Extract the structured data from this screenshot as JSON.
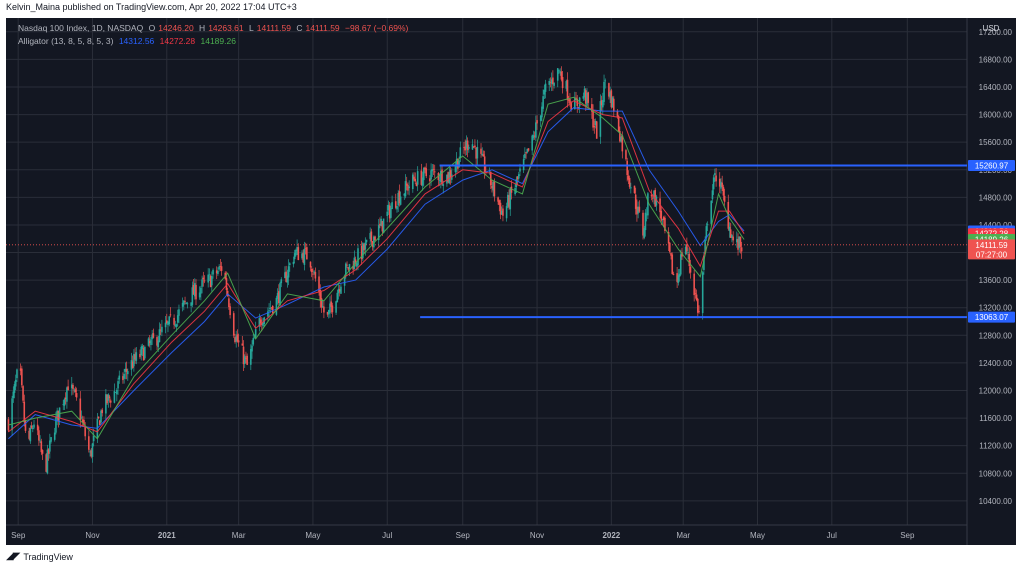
{
  "header": {
    "publisher": "Kelvin_Maina published on TradingView.com, Apr 20, 2022 17:04 UTC+3"
  },
  "legend": {
    "symbol": "Nasdaq 100 Index, 1D, NASDAQ",
    "ohlc": [
      {
        "k": "O",
        "v": "14246.20"
      },
      {
        "k": "H",
        "v": "14263.61"
      },
      {
        "k": "L",
        "v": "14111.59"
      },
      {
        "k": "C",
        "v": "14111.59"
      }
    ],
    "change": "−98.67 (−0.69%)",
    "indicator": "Alligator (13, 8, 5, 8, 5, 3)",
    "jaw": "14312.56",
    "teeth": "14272.28",
    "lips": "14189.26"
  },
  "footer": {
    "brand": "TradingView"
  },
  "colors": {
    "background": "#131722",
    "grid": "#2a2e39",
    "up": "#26a69a",
    "down": "#ef5350",
    "jaw": "#2962ff",
    "teeth": "#f23645",
    "lips": "#4caf50",
    "level": "#2962ff"
  },
  "chart_data": {
    "type": "candlestick",
    "currency": "USD",
    "y_ticks": [
      10400,
      10800,
      11200,
      11600,
      12000,
      12400,
      12800,
      13200,
      13600,
      14000,
      14400,
      14800,
      15200,
      15600,
      16000,
      16400,
      16800,
      17200
    ],
    "y_tick_labels": [
      "10400.00",
      "10800.00",
      "11200.00",
      "11600.00",
      "12000.00",
      "12400.00",
      "12800.00",
      "13200.00",
      "13600.00",
      "14000.00",
      "14400.00",
      "14800.00",
      "15200.00",
      "15600.00",
      "16000.00",
      "16400.00",
      "16800.00",
      "17200.00"
    ],
    "ylim": [
      10050,
      17400
    ],
    "x_ticks": [
      {
        "label": "Sep",
        "date": "2020-09-01",
        "bold": false
      },
      {
        "label": "Nov",
        "date": "2020-11-01",
        "bold": false
      },
      {
        "label": "2021",
        "date": "2021-01-01",
        "bold": true
      },
      {
        "label": "Mar",
        "date": "2021-03-01",
        "bold": false
      },
      {
        "label": "May",
        "date": "2021-05-01",
        "bold": false
      },
      {
        "label": "Jul",
        "date": "2021-07-01",
        "bold": false
      },
      {
        "label": "Sep",
        "date": "2021-09-01",
        "bold": false
      },
      {
        "label": "Nov",
        "date": "2021-11-01",
        "bold": false
      },
      {
        "label": "2022",
        "date": "2022-01-01",
        "bold": true
      },
      {
        "label": "Mar",
        "date": "2022-03-01",
        "bold": false
      },
      {
        "label": "May",
        "date": "2022-05-01",
        "bold": false
      },
      {
        "label": "Jul",
        "date": "2022-07-01",
        "bold": false
      },
      {
        "label": "Sep",
        "date": "2022-09-01",
        "bold": false
      }
    ],
    "xlim": [
      "2020-08-22",
      "2022-10-20"
    ],
    "close_path": [
      [
        "2020-08-24",
        11550
      ],
      [
        "2020-09-02",
        12380
      ],
      [
        "2020-09-08",
        11150
      ],
      [
        "2020-09-14",
        11550
      ],
      [
        "2020-09-23",
        10850
      ],
      [
        "2020-10-01",
        11500
      ],
      [
        "2020-10-12",
        12100
      ],
      [
        "2020-10-20",
        11800
      ],
      [
        "2020-10-30",
        11050
      ],
      [
        "2020-11-09",
        11750
      ],
      [
        "2020-11-20",
        12000
      ],
      [
        "2020-12-01",
        12350
      ],
      [
        "2020-12-15",
        12600
      ],
      [
        "2020-12-31",
        12900
      ],
      [
        "2021-01-08",
        13050
      ],
      [
        "2021-01-22",
        13400
      ],
      [
        "2021-02-05",
        13600
      ],
      [
        "2021-02-16",
        13800
      ],
      [
        "2021-02-26",
        12800
      ],
      [
        "2021-03-08",
        12350
      ],
      [
        "2021-03-19",
        13050
      ],
      [
        "2021-04-01",
        13300
      ],
      [
        "2021-04-16",
        14000
      ],
      [
        "2021-04-28",
        13950
      ],
      [
        "2021-05-12",
        13000
      ],
      [
        "2021-05-26",
        13700
      ],
      [
        "2021-06-10",
        14000
      ],
      [
        "2021-06-25",
        14350
      ],
      [
        "2021-07-09",
        14800
      ],
      [
        "2021-07-23",
        15050
      ],
      [
        "2021-08-06",
        15150
      ],
      [
        "2021-08-20",
        15100
      ],
      [
        "2021-09-07",
        15650
      ],
      [
        "2021-09-20",
        15200
      ],
      [
        "2021-10-04",
        14550
      ],
      [
        "2021-10-15",
        15000
      ],
      [
        "2021-10-28",
        15600
      ],
      [
        "2021-11-08",
        16350
      ],
      [
        "2021-11-19",
        16650
      ],
      [
        "2021-12-01",
        16100
      ],
      [
        "2021-12-10",
        16300
      ],
      [
        "2021-12-20",
        15750
      ],
      [
        "2021-12-27",
        16500
      ],
      [
        "2022-01-05",
        16000
      ],
      [
        "2022-01-14",
        15200
      ],
      [
        "2022-01-27",
        14300
      ],
      [
        "2022-02-02",
        14950
      ],
      [
        "2022-02-10",
        14600
      ],
      [
        "2022-02-23",
        13500
      ],
      [
        "2022-03-02",
        14200
      ],
      [
        "2022-03-14",
        13100
      ],
      [
        "2022-03-22",
        14700
      ],
      [
        "2022-03-29",
        15200
      ],
      [
        "2022-04-05",
        14600
      ],
      [
        "2022-04-12",
        14100
      ],
      [
        "2022-04-20",
        14111.59
      ]
    ],
    "alligator": {
      "jaw": [
        [
          "2020-08-24",
          11300
        ],
        [
          "2020-09-15",
          11650
        ],
        [
          "2020-10-15",
          11500
        ],
        [
          "2020-11-05",
          11450
        ],
        [
          "2020-12-05",
          12000
        ],
        [
          "2021-01-05",
          12550
        ],
        [
          "2021-02-01",
          13000
        ],
        [
          "2021-02-20",
          13400
        ],
        [
          "2021-03-15",
          13050
        ],
        [
          "2021-04-10",
          13250
        ],
        [
          "2021-05-10",
          13500
        ],
        [
          "2021-06-05",
          13600
        ],
        [
          "2021-07-01",
          14050
        ],
        [
          "2021-08-01",
          14700
        ],
        [
          "2021-09-01",
          15050
        ],
        [
          "2021-09-25",
          15200
        ],
        [
          "2021-10-20",
          15000
        ],
        [
          "2021-11-10",
          15750
        ],
        [
          "2021-12-01",
          16100
        ],
        [
          "2021-12-25",
          16050
        ],
        [
          "2022-01-10",
          16050
        ],
        [
          "2022-02-01",
          15200
        ],
        [
          "2022-02-25",
          14600
        ],
        [
          "2022-03-15",
          14100
        ],
        [
          "2022-03-30",
          14450
        ],
        [
          "2022-04-08",
          14550
        ],
        [
          "2022-04-20",
          14312.56
        ]
      ],
      "teeth": [
        [
          "2020-08-24",
          11400
        ],
        [
          "2020-09-15",
          11700
        ],
        [
          "2020-10-15",
          11550
        ],
        [
          "2020-11-05",
          11400
        ],
        [
          "2020-12-05",
          12100
        ],
        [
          "2021-01-05",
          12700
        ],
        [
          "2021-02-01",
          13150
        ],
        [
          "2021-02-20",
          13550
        ],
        [
          "2021-03-15",
          12900
        ],
        [
          "2021-04-10",
          13300
        ],
        [
          "2021-05-10",
          13450
        ],
        [
          "2021-06-05",
          13750
        ],
        [
          "2021-07-01",
          14200
        ],
        [
          "2021-08-01",
          14850
        ],
        [
          "2021-09-01",
          15200
        ],
        [
          "2021-09-25",
          15150
        ],
        [
          "2021-10-20",
          14950
        ],
        [
          "2021-11-10",
          15900
        ],
        [
          "2021-12-01",
          16200
        ],
        [
          "2021-12-25",
          16000
        ],
        [
          "2022-01-10",
          15950
        ],
        [
          "2022-02-01",
          14900
        ],
        [
          "2022-02-25",
          14350
        ],
        [
          "2022-03-15",
          13800
        ],
        [
          "2022-03-30",
          14600
        ],
        [
          "2022-04-08",
          14600
        ],
        [
          "2022-04-20",
          14272.28
        ]
      ],
      "lips": [
        [
          "2020-08-24",
          11500
        ],
        [
          "2020-09-15",
          11600
        ],
        [
          "2020-10-15",
          11700
        ],
        [
          "2020-11-05",
          11300
        ],
        [
          "2020-12-05",
          12200
        ],
        [
          "2021-01-05",
          12800
        ],
        [
          "2021-02-01",
          13300
        ],
        [
          "2021-02-20",
          13700
        ],
        [
          "2021-03-15",
          12750
        ],
        [
          "2021-04-10",
          13400
        ],
        [
          "2021-05-10",
          13300
        ],
        [
          "2021-06-05",
          13850
        ],
        [
          "2021-07-01",
          14350
        ],
        [
          "2021-08-01",
          14950
        ],
        [
          "2021-09-01",
          15400
        ],
        [
          "2021-09-25",
          15050
        ],
        [
          "2021-10-20",
          14850
        ],
        [
          "2021-11-10",
          16150
        ],
        [
          "2021-12-01",
          16250
        ],
        [
          "2021-12-25",
          15950
        ],
        [
          "2022-01-10",
          15700
        ],
        [
          "2022-02-01",
          14700
        ],
        [
          "2022-02-25",
          14050
        ],
        [
          "2022-03-15",
          13650
        ],
        [
          "2022-03-30",
          14850
        ],
        [
          "2022-04-08",
          14500
        ],
        [
          "2022-04-20",
          14189.26
        ]
      ]
    },
    "horizontal_levels": [
      {
        "value": 15260.97,
        "label": "15260.97",
        "start": "2021-08-13"
      },
      {
        "value": 13063.07,
        "label": "13063.07",
        "start": "2021-07-28"
      }
    ],
    "price_tags": [
      {
        "value": 14312.56,
        "label": "14312.56",
        "color": "#2962ff"
      },
      {
        "value": 14272.28,
        "label": "14272.28",
        "color": "#f23645"
      },
      {
        "value": 14189.26,
        "label": "14189.26",
        "color": "#4caf50"
      }
    ],
    "last_price": {
      "value": 14111.59,
      "label": "14111.59",
      "countdown": "07:27:00",
      "color": "#ef5350"
    }
  }
}
